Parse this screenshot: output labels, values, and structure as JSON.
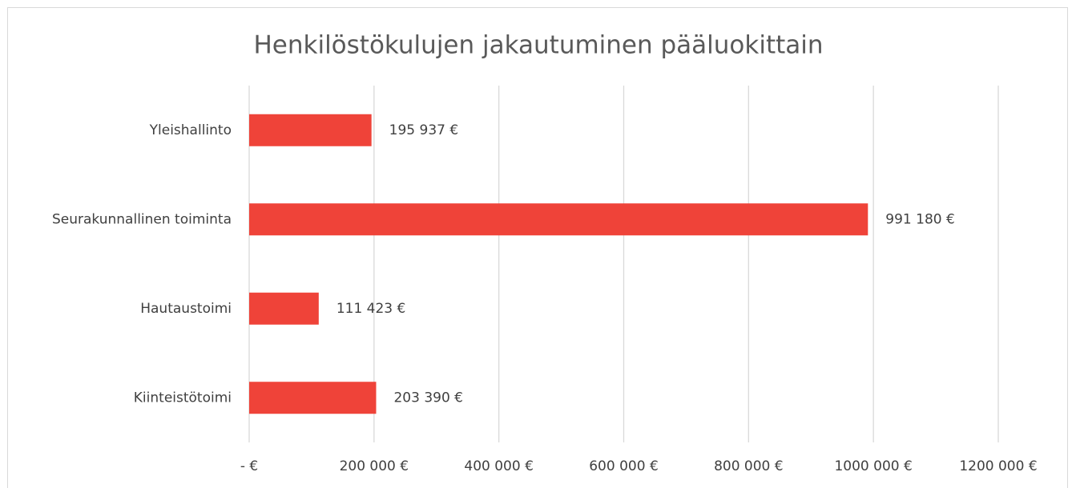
{
  "chart_data": {
    "type": "bar",
    "horizontal": true,
    "title": "Henkilöstökulujen jakautuminen pääluokittain",
    "categories": [
      "Yleishallinto",
      "Seurakunnallinen toiminta",
      "Hautaustoimi",
      "Kiinteistötoimi"
    ],
    "values": [
      195937,
      991180,
      111423,
      203390
    ],
    "value_labels": [
      "195 937 €",
      "991 180 €",
      "111 423 €",
      "203 390 €"
    ],
    "color": "#ef4339",
    "xlim": [
      0,
      1200000
    ],
    "xticks": [
      {
        "value": 0,
        "label": "-  €"
      },
      {
        "value": 200000,
        "label": "200 000 €"
      },
      {
        "value": 400000,
        "label": "400 000 €"
      },
      {
        "value": 600000,
        "label": "600 000 €"
      },
      {
        "value": 800000,
        "label": "800 000 €"
      },
      {
        "value": 1000000,
        "label": "1000 000 €"
      },
      {
        "value": 1200000,
        "label": "1200 000 €"
      }
    ],
    "grid": true
  }
}
